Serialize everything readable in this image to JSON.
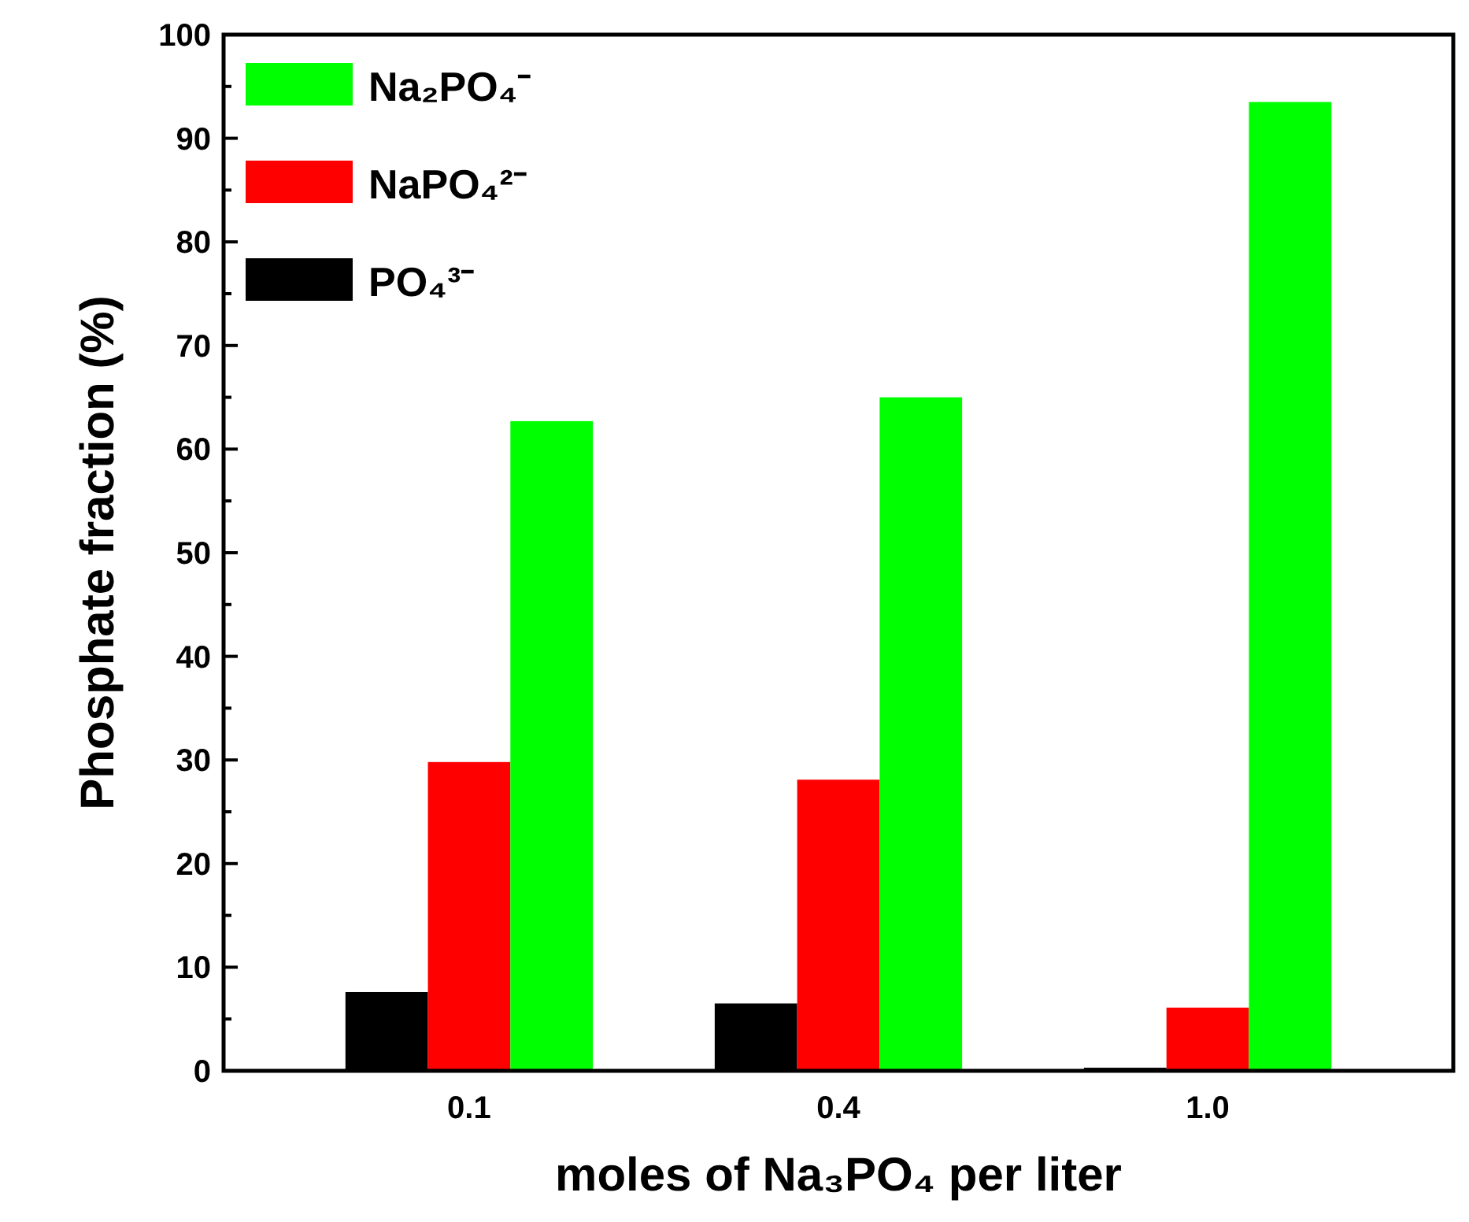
{
  "chart_data": {
    "type": "bar",
    "xlabel": "moles of Na₃PO₄ per liter",
    "ylabel": "Phosphate fraction (%)",
    "categories": [
      "0.1",
      "0.4",
      "1.0"
    ],
    "series": [
      {
        "name": "PO₄³⁻",
        "color": "#000000",
        "values": [
          7.6,
          6.5,
          0.3
        ]
      },
      {
        "name": "NaPO₄²⁻",
        "color": "#ff0000",
        "values": [
          29.8,
          28.1,
          6.1
        ]
      },
      {
        "name": "Na₂PO₄⁻",
        "color": "#00ff00",
        "values": [
          62.7,
          65.0,
          93.5
        ]
      }
    ],
    "ylim": [
      0,
      100
    ],
    "yticks": [
      0,
      {
        "value": 5,
        "label": null
      },
      10,
      {
        "value": 15,
        "label": null
      },
      20,
      {
        "value": 25,
        "label": null
      },
      30,
      {
        "value": 35,
        "label": null
      },
      40,
      {
        "value": 45,
        "label": null
      },
      50,
      {
        "value": 55,
        "label": null
      },
      60,
      {
        "value": 65,
        "label": null
      },
      70,
      {
        "value": 75,
        "label": null
      },
      80,
      {
        "value": 85,
        "label": null
      },
      90,
      {
        "value": 95,
        "label": null
      },
      100
    ],
    "legend": "top left",
    "grid": false
  }
}
